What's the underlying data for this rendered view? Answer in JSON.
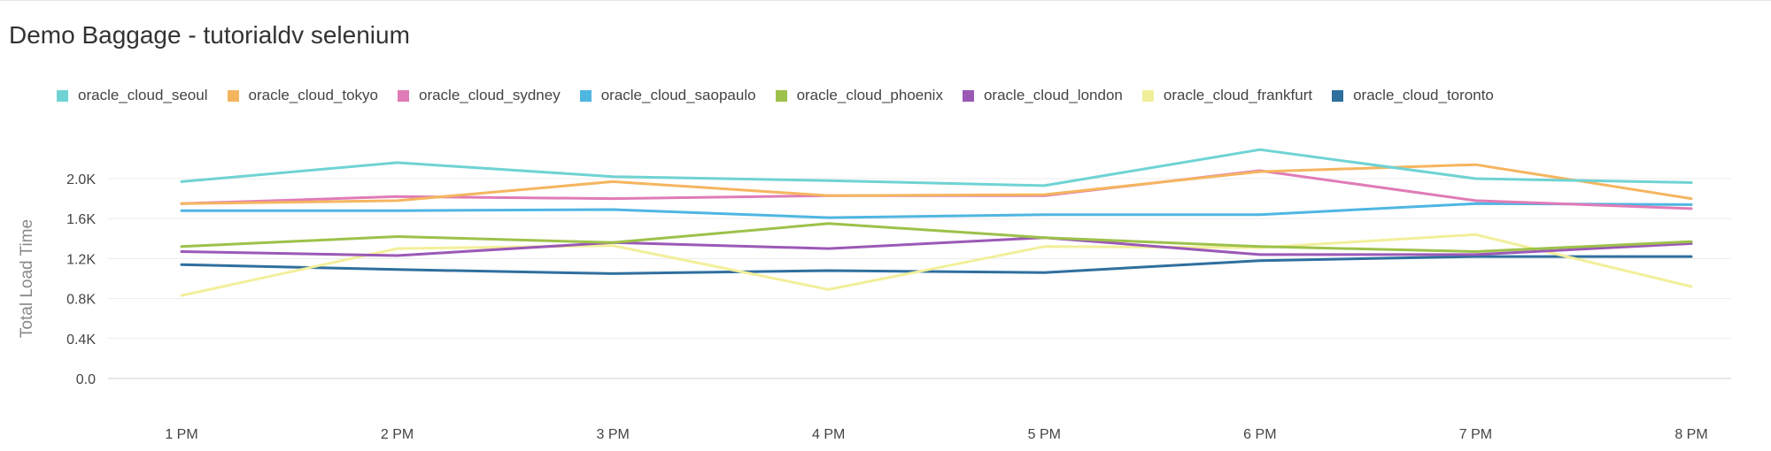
{
  "title": "Demo Baggage - tutorialdv selenium",
  "chart_data": {
    "type": "line",
    "title": "Demo Baggage - tutorialdv selenium",
    "xlabel": "",
    "ylabel": "Total Load Time",
    "categories": [
      "1 PM",
      "2 PM",
      "3 PM",
      "4 PM",
      "5 PM",
      "6 PM",
      "7 PM",
      "8 PM"
    ],
    "yticks": [
      "0.0",
      "0.4K",
      "0.8K",
      "1.2K",
      "1.6K",
      "2.0K"
    ],
    "ylim": [
      0,
      2000
    ],
    "grid": true,
    "legend_position": "top-left",
    "series": [
      {
        "name": "oracle_cloud_seoul",
        "color": "#6fd3d3",
        "values": [
          1970,
          2160,
          2020,
          1980,
          1930,
          2290,
          2000,
          1960
        ]
      },
      {
        "name": "oracle_cloud_tokyo",
        "color": "#f5b55f",
        "values": [
          1750,
          1780,
          1970,
          1830,
          1840,
          2070,
          2140,
          1800
        ]
      },
      {
        "name": "oracle_cloud_sydney",
        "color": "#e07bb7",
        "values": [
          1750,
          1820,
          1800,
          1830,
          1830,
          2080,
          1780,
          1700
        ]
      },
      {
        "name": "oracle_cloud_saopaulo",
        "color": "#4fb6e2",
        "values": [
          1680,
          1680,
          1690,
          1610,
          1640,
          1640,
          1750,
          1740
        ]
      },
      {
        "name": "oracle_cloud_phoenix",
        "color": "#9dc14a",
        "values": [
          1320,
          1420,
          1360,
          1550,
          1410,
          1320,
          1270,
          1370
        ]
      },
      {
        "name": "oracle_cloud_london",
        "color": "#9b59b6",
        "values": [
          1270,
          1230,
          1360,
          1300,
          1410,
          1240,
          1240,
          1350
        ]
      },
      {
        "name": "oracle_cloud_frankfurt",
        "color": "#f2ef9b",
        "values": [
          830,
          1300,
          1330,
          890,
          1320,
          1310,
          1440,
          920
        ]
      },
      {
        "name": "oracle_cloud_toronto",
        "color": "#2f6f9e",
        "values": [
          1140,
          1090,
          1050,
          1080,
          1060,
          1180,
          1220,
          1220
        ]
      }
    ]
  }
}
